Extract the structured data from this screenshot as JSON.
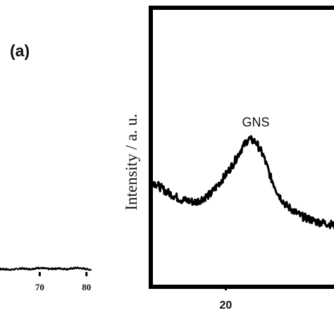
{
  "panel_label": "(a)",
  "chart_data": [
    {
      "type": "line",
      "title": "",
      "xlabel": "",
      "ylabel": "",
      "x_ticks": [
        70,
        80
      ],
      "xlim": [
        60,
        82
      ],
      "ylim": [
        0,
        1
      ],
      "series": [
        {
          "x": [
            60,
            62,
            64,
            66,
            68,
            70,
            72,
            74,
            76,
            78,
            80,
            81
          ],
          "y": [
            0.06,
            0.07,
            0.06,
            0.08,
            0.07,
            0.09,
            0.07,
            0.08,
            0.07,
            0.09,
            0.07,
            0.06
          ]
        }
      ],
      "annotations": []
    },
    {
      "type": "line",
      "title": "",
      "xlabel": "",
      "ylabel": "Intensity / a. u.",
      "x_ticks": [
        20
      ],
      "xlim": [
        10,
        35
      ],
      "ylim": [
        0,
        1
      ],
      "series": [
        {
          "x": [
            10,
            12,
            14,
            16,
            18,
            20,
            21,
            22,
            23,
            24,
            25,
            26,
            27,
            28,
            30,
            32,
            34,
            35
          ],
          "y": [
            0.38,
            0.34,
            0.31,
            0.3,
            0.33,
            0.4,
            0.44,
            0.49,
            0.53,
            0.52,
            0.47,
            0.39,
            0.33,
            0.29,
            0.25,
            0.23,
            0.22,
            0.21
          ]
        }
      ],
      "annotations": [
        {
          "text": "GNS",
          "x": 24,
          "y": 0.53
        }
      ]
    }
  ]
}
